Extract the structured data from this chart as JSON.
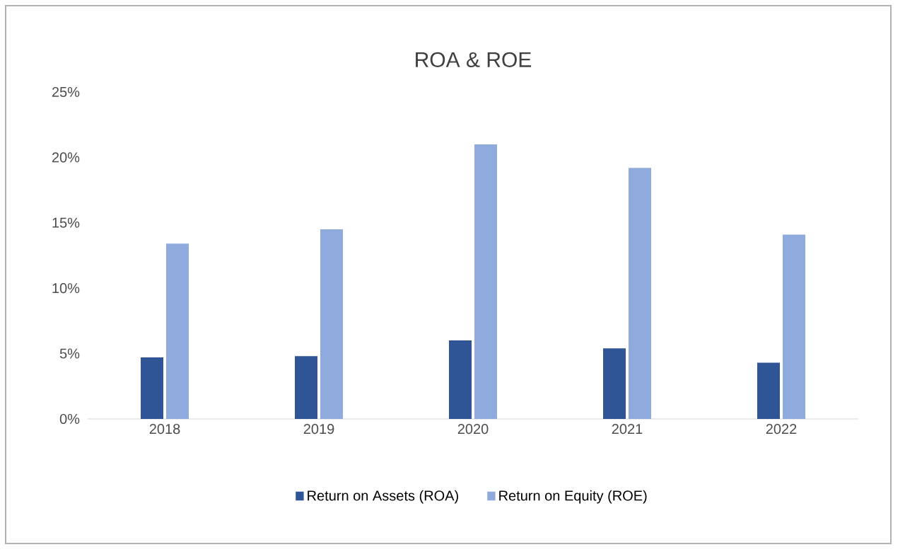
{
  "chart_data": {
    "type": "bar",
    "title": "ROA & ROE",
    "categories": [
      "2018",
      "2019",
      "2020",
      "2021",
      "2022"
    ],
    "series": [
      {
        "name": "Return on Assets (ROA)",
        "color": "#2f5597",
        "values": [
          4.7,
          4.8,
          6.0,
          5.4,
          4.3
        ]
      },
      {
        "name": "Return on Equity (ROE)",
        "color": "#8faadc",
        "values": [
          13.4,
          14.5,
          21.0,
          19.2,
          14.1
        ]
      }
    ],
    "ylim": [
      0,
      25
    ],
    "yticks": [
      {
        "value": 0,
        "label": "0%"
      },
      {
        "value": 5,
        "label": "5%"
      },
      {
        "value": 10,
        "label": "10%"
      },
      {
        "value": 15,
        "label": "15%"
      },
      {
        "value": 20,
        "label": "20%"
      },
      {
        "value": 25,
        "label": "25%"
      }
    ],
    "grid": false,
    "legend": "bottom"
  }
}
